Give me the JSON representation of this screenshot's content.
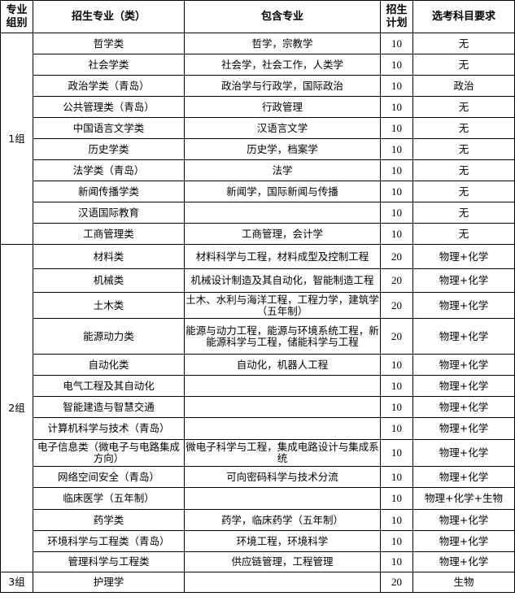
{
  "header": {
    "group": "专业\n组别",
    "group_l1": "专业",
    "group_l2": "组别",
    "major": "招生专业（类）",
    "includes": "包含专业",
    "plan_l1": "招生",
    "plan_l2": "计划",
    "subjects": "选考科目要求"
  },
  "groups": [
    {
      "label": "1组",
      "rows": [
        {
          "major": "哲学类",
          "includes": "哲学，宗教学",
          "plan": "10",
          "subjects": "无"
        },
        {
          "major": "社会学类",
          "includes": "社会学，社会工作，人类学",
          "plan": "10",
          "subjects": "无"
        },
        {
          "major": "政治学类（青岛）",
          "includes": "政治学与行政学，国际政治",
          "plan": "10",
          "subjects": "政治"
        },
        {
          "major": "公共管理类（青岛）",
          "includes": "行政管理",
          "plan": "10",
          "subjects": "无"
        },
        {
          "major": "中国语言文学类",
          "includes": "汉语言文学",
          "plan": "10",
          "subjects": "无"
        },
        {
          "major": "历史学类",
          "includes": "历史学，档案学",
          "plan": "10",
          "subjects": "无"
        },
        {
          "major": "法学类（青岛）",
          "includes": "法学",
          "plan": "10",
          "subjects": "无"
        },
        {
          "major": "新闻传播学类",
          "includes": "新闻学，国际新闻与传播",
          "plan": "10",
          "subjects": "无"
        },
        {
          "major": "汉语国际教育",
          "includes": "",
          "plan": "10",
          "subjects": "无"
        },
        {
          "major": "工商管理类",
          "includes": "工商管理，会计学",
          "plan": "10",
          "subjects": "无"
        }
      ]
    },
    {
      "label": "2组",
      "rows": [
        {
          "major": "材料类",
          "includes": "材料科学与工程，材料成型及控制工程",
          "plan": "20",
          "subjects": "物理+化学"
        },
        {
          "major": "机械类",
          "includes": "机械设计制造及其自动化，智能制造工程",
          "plan": "20",
          "subjects": "物理+化学"
        },
        {
          "major": "土木类",
          "includes": "土木、水利与海洋工程，工程力学，建筑学（五年制）",
          "plan": "20",
          "subjects": "物理+化学"
        },
        {
          "major": "能源动力类",
          "includes": "能源与动力工程，能源与环境系统工程，新能源科学与工程，储能科学与工程",
          "plan": "20",
          "subjects": "物理+化学"
        },
        {
          "major": "自动化类",
          "includes": "自动化，机器人工程",
          "plan": "10",
          "subjects": "物理+化学"
        },
        {
          "major": "电气工程及其自动化",
          "includes": "",
          "plan": "10",
          "subjects": "物理+化学"
        },
        {
          "major": "智能建造与智慧交通",
          "includes": "",
          "plan": "10",
          "subjects": "物理+化学"
        },
        {
          "major": "计算机科学与技术（青岛）",
          "includes": "",
          "plan": "10",
          "subjects": "物理+化学"
        },
        {
          "major": "电子信息类（微电子与电路集成方向）",
          "includes": "微电子科学与工程，集成电路设计与集成系统",
          "plan": "10",
          "subjects": "物理+化学"
        },
        {
          "major": "网络空间安全（青岛）",
          "includes": "可向密码科学与技术分流",
          "plan": "10",
          "subjects": "物理+化学"
        },
        {
          "major": "临床医学（五年制）",
          "includes": "",
          "plan": "10",
          "subjects": "物理+化学+生物"
        },
        {
          "major": "药学类",
          "includes": "药学，临床药学（五年制）",
          "plan": "10",
          "subjects": "物理+化学"
        },
        {
          "major": "环境科学与工程类（青岛）",
          "includes": "环境工程，环境科学",
          "plan": "10",
          "subjects": "物理+化学"
        },
        {
          "major": "管理科学与工程类",
          "includes": "供应链管理，工程管理",
          "plan": "10",
          "subjects": "物理+化学"
        }
      ]
    },
    {
      "label": "3组",
      "rows": [
        {
          "major": "护理学",
          "includes": "",
          "plan": "20",
          "subjects": "生物"
        }
      ]
    }
  ]
}
